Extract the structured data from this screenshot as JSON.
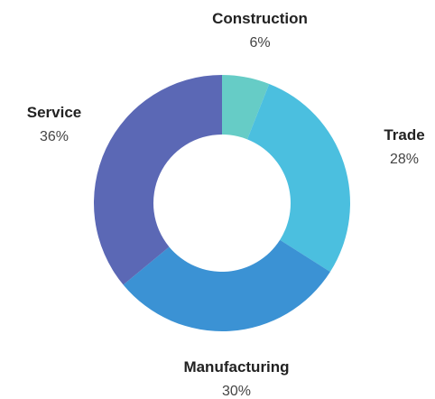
{
  "chart_data": {
    "type": "pie",
    "donut": true,
    "slices": [
      {
        "label": "Construction",
        "value": 6,
        "display": "6%",
        "color": "#66ccc6"
      },
      {
        "label": "Trade",
        "value": 28,
        "display": "28%",
        "color": "#4bbfdf"
      },
      {
        "label": "Manufacturing",
        "value": 30,
        "display": "30%",
        "color": "#3b92d4"
      },
      {
        "label": "Service",
        "value": 36,
        "display": "36%",
        "color": "#5b68b5"
      }
    ]
  }
}
